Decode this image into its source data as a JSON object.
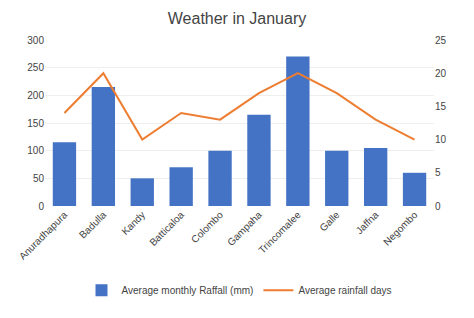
{
  "chart_data": {
    "type": "bar",
    "title": "Weather in January",
    "categories": [
      "Anuradhapura",
      "Badulla",
      "Kandy",
      "Batticaloa",
      "Colombo",
      "Gampaha",
      "Trincomalee",
      "Galle",
      "Jaffna",
      "Negombo"
    ],
    "series": [
      {
        "name": "Average monthly Raffall (mm)",
        "type": "bar",
        "color": "#4472C4",
        "values": [
          115,
          215,
          50,
          70,
          100,
          165,
          270,
          100,
          105,
          60
        ]
      },
      {
        "name": "Average rainfall days",
        "type": "line",
        "color": "#ED7D31",
        "axis": "y2",
        "values": [
          14,
          20,
          10,
          14,
          13,
          17,
          20,
          17,
          13,
          10
        ]
      }
    ],
    "ylim": [
      0,
      300
    ],
    "yticks": [
      0,
      50,
      100,
      150,
      200,
      250,
      300
    ],
    "y2lim": [
      0,
      25
    ],
    "y2ticks": [
      0,
      5,
      10,
      15,
      20,
      25
    ],
    "grid": true,
    "legend": "bottom"
  }
}
